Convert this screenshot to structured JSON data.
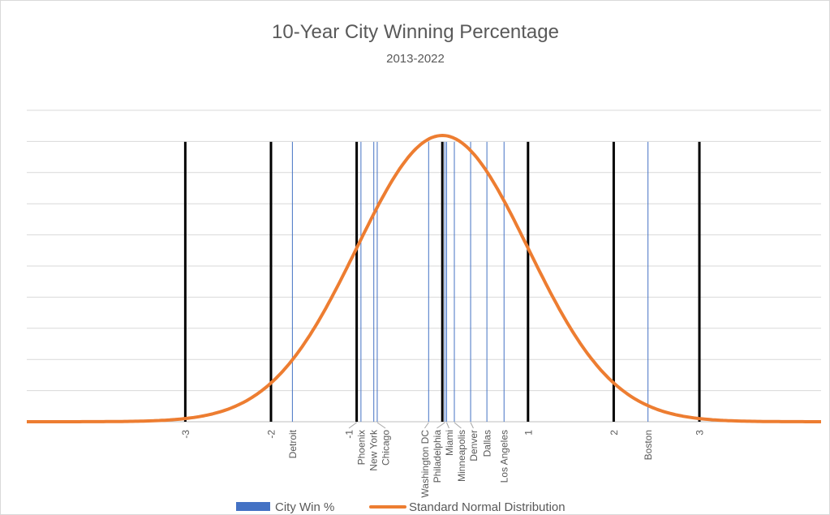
{
  "chart_data": {
    "type": "line",
    "title": "10-Year City Winning Percentage",
    "subtitle": "2013-2022",
    "xlim": [
      -4.85,
      4.42
    ],
    "ylim": [
      0,
      0.434
    ],
    "grid": true,
    "gridline_count": 10,
    "legend_position": "bottom",
    "sd_markers": {
      "labels": [
        "-3",
        "-2",
        "-1",
        "1",
        "2",
        "3"
      ],
      "x": [
        -3,
        -2,
        -1,
        0,
        1,
        2,
        3
      ],
      "height": 0.39
    },
    "series": [
      {
        "name": "City Win %",
        "kind": "vertical-lines",
        "color": "#4472c4",
        "height": 0.39,
        "points": [
          {
            "label": "Detroit",
            "x": -1.75
          },
          {
            "label": "Phoenix",
            "x": -0.95
          },
          {
            "label": "New York",
            "x": -0.8
          },
          {
            "label": "Chicago",
            "x": -0.76
          },
          {
            "label": "Washington DC",
            "x": -0.16
          },
          {
            "label": "Philadelphia",
            "x": 0.03
          },
          {
            "label": "Miami",
            "x": 0.05
          },
          {
            "label": "Minneapolis",
            "x": 0.14
          },
          {
            "label": "Denver",
            "x": 0.33
          },
          {
            "label": "Dallas",
            "x": 0.52
          },
          {
            "label": "Los Angeles",
            "x": 0.72
          },
          {
            "label": "Boston",
            "x": 2.4
          }
        ]
      },
      {
        "name": "Standard Normal Distribution",
        "kind": "curve",
        "color": "#ed7d31",
        "function": "standard normal pdf"
      }
    ]
  }
}
